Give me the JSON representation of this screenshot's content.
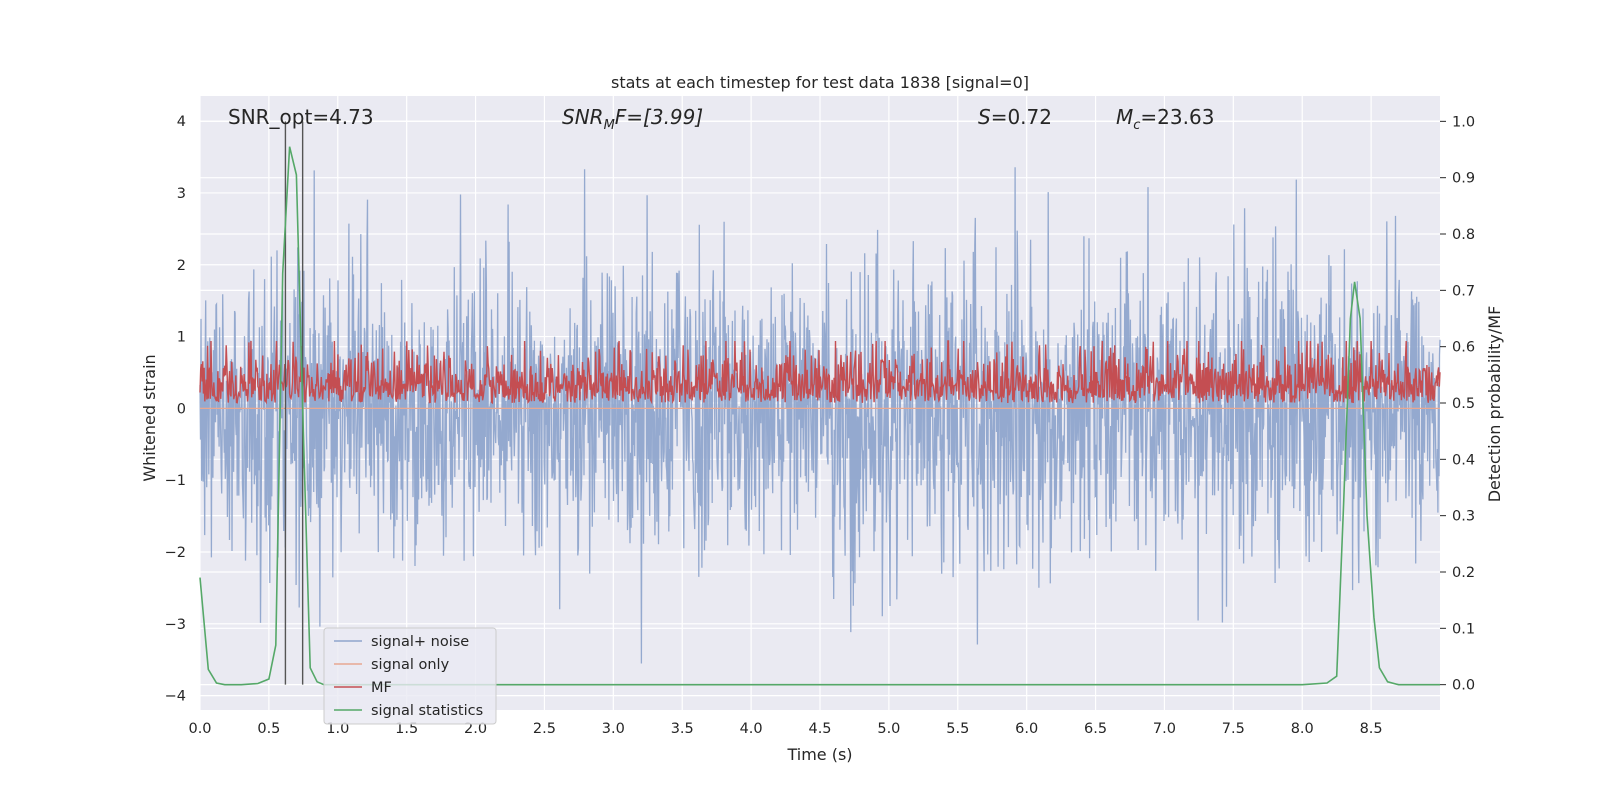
{
  "chart_data": {
    "type": "line",
    "title": "stats at each timestep for test data 1838 [signal=0]",
    "xlabel": "Time (s)",
    "ylabel": "Whitened strain",
    "ylabel_right": "Detection probability/MF",
    "xlim": [
      0.0,
      9.0
    ],
    "ylim": [
      -4.2,
      4.35
    ],
    "ylim_right": [
      -0.045,
      1.045
    ],
    "x_ticks": [
      "0.0",
      "0.5",
      "1.0",
      "1.5",
      "2.0",
      "2.5",
      "3.0",
      "3.5",
      "4.0",
      "4.5",
      "5.0",
      "5.5",
      "6.0",
      "6.5",
      "7.0",
      "7.5",
      "8.0",
      "8.5"
    ],
    "y_ticks": [
      "4",
      "3",
      "2",
      "1",
      "0",
      "−1",
      "−2",
      "−3",
      "−4"
    ],
    "y_ticks_right": [
      "1.0",
      "0.9",
      "0.8",
      "0.7",
      "0.6",
      "0.5",
      "0.4",
      "0.3",
      "0.2",
      "0.1",
      "0.0"
    ],
    "grid": true,
    "legend_position": "lower-left",
    "annotations": {
      "snr_opt": "SNR_opt=4.73",
      "snr_mf_sym": "SNR",
      "snr_mf_sub": "M",
      "snr_mf_rest": "F=[3.99]",
      "s_sym": "S",
      "s_val": "=0.72",
      "mc_sym": "M",
      "mc_sub": "c",
      "mc_val": "=23.63"
    },
    "vertical_markers": [
      0.62,
      0.745
    ],
    "series": [
      {
        "name": "signal+ noise",
        "color": "#8fa5cc",
        "axis": "left",
        "render": "noise",
        "mean": 0.0,
        "std": 1.0,
        "n_points": 2400,
        "max": 4.0,
        "min": -3.72
      },
      {
        "name": "signal only",
        "color": "#e8a891",
        "axis": "left",
        "values_constant": 0.0
      },
      {
        "name": "MF",
        "color": "#c44e52",
        "axis": "right",
        "render": "noise",
        "baseline": 0.5,
        "range": [
          0.5,
          0.61
        ],
        "n_points": 1800
      },
      {
        "name": "signal statistics",
        "color": "#55a868",
        "axis": "right",
        "x": [
          0.0,
          0.06,
          0.12,
          0.18,
          0.3,
          0.42,
          0.5,
          0.55,
          0.6,
          0.65,
          0.7,
          0.75,
          0.8,
          0.85,
          0.9,
          1.0,
          1.5,
          2.0,
          3.0,
          4.0,
          5.0,
          6.0,
          7.0,
          7.5,
          8.0,
          8.18,
          8.25,
          8.3,
          8.35,
          8.38,
          8.42,
          8.47,
          8.52,
          8.56,
          8.62,
          8.7,
          9.0
        ],
        "y": [
          0.19,
          0.027,
          0.003,
          0.0,
          0.0,
          0.002,
          0.01,
          0.07,
          0.73,
          0.955,
          0.905,
          0.45,
          0.03,
          0.005,
          0.0,
          0.0,
          0.0,
          0.0,
          0.0,
          0.0,
          0.0,
          0.0,
          0.0,
          0.0,
          0.0,
          0.003,
          0.015,
          0.32,
          0.65,
          0.715,
          0.65,
          0.3,
          0.12,
          0.03,
          0.005,
          0.0,
          0.0
        ]
      }
    ]
  }
}
